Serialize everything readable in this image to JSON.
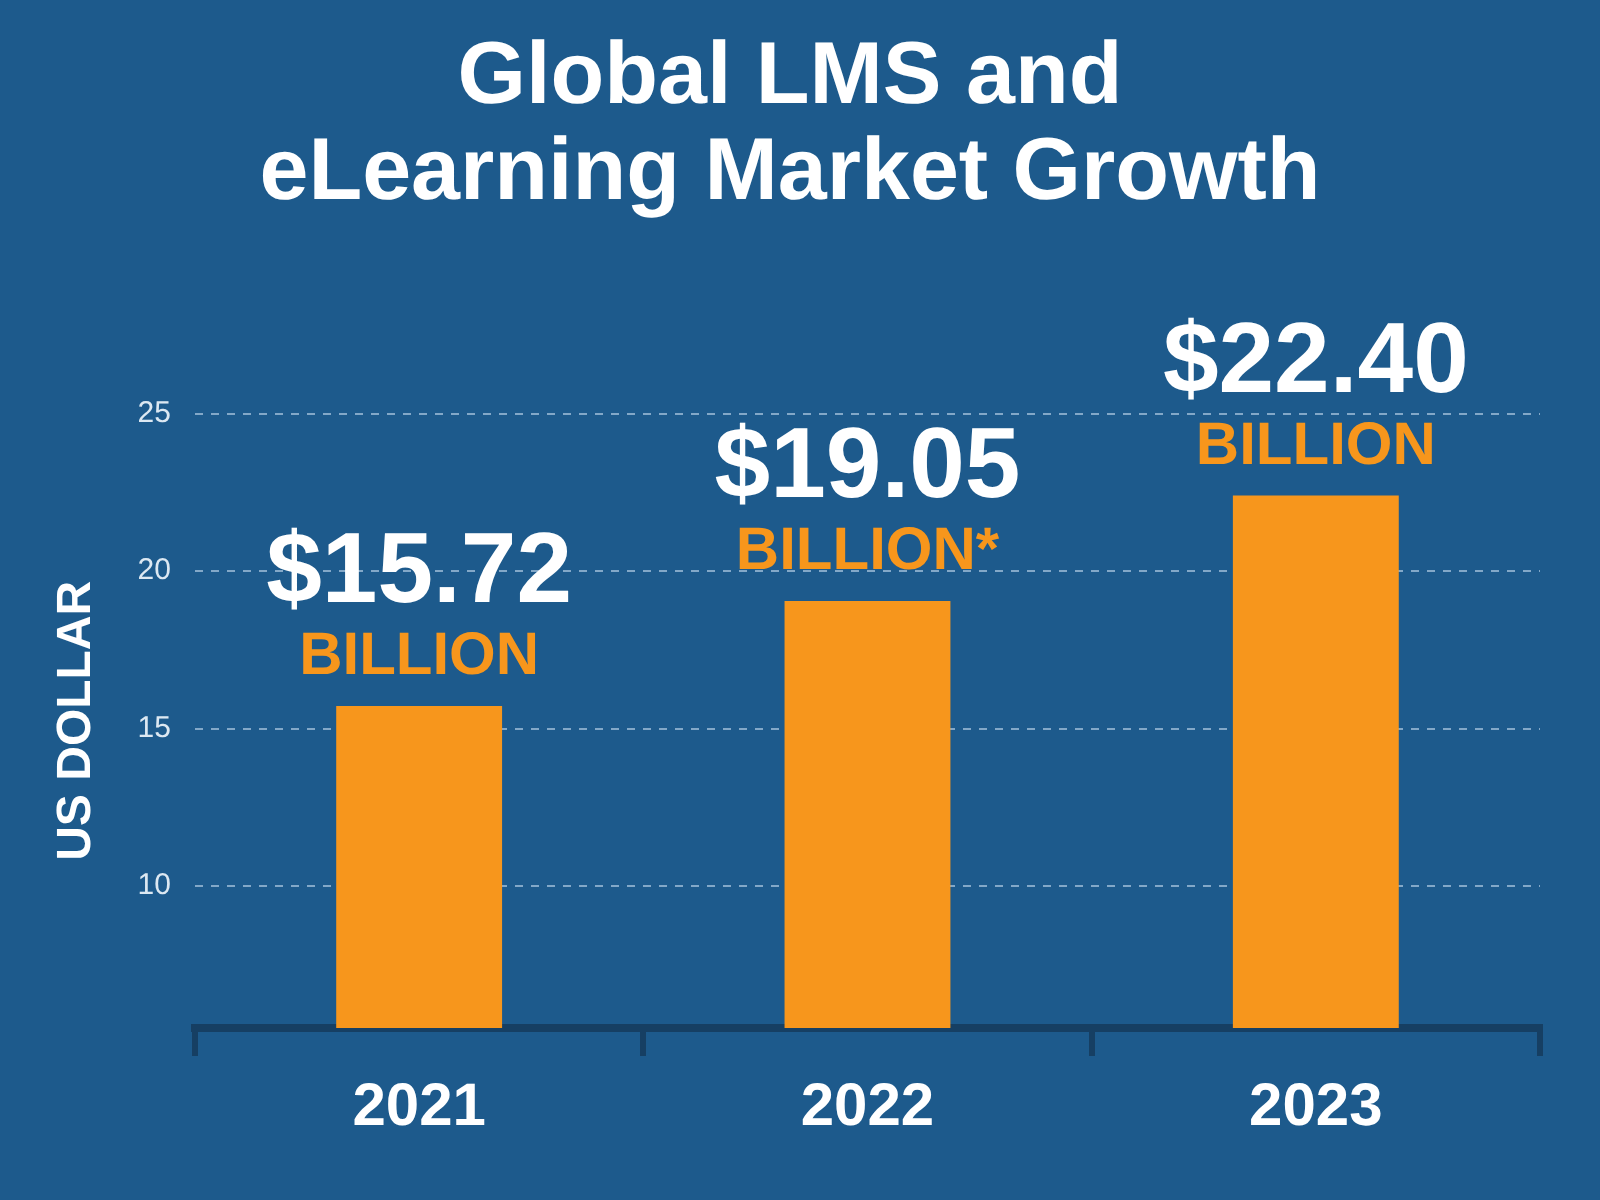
{
  "chart_data": {
    "type": "bar",
    "title": "Global LMS and\neLearning Market Growth",
    "ylabel": "US DOLLAR",
    "categories": [
      "2021",
      "2022",
      "2023"
    ],
    "values": [
      15.72,
      19.05,
      22.4
    ],
    "color": "#f7961c",
    "value_labels": [
      "$15.72\nBILLION",
      "$19.05\nBILLION*",
      "$22.40\nBILLION"
    ],
    "ylim": [
      5.5,
      25
    ],
    "yticks": [
      10,
      15,
      20,
      25
    ],
    "grid": "y",
    "legend": false
  }
}
